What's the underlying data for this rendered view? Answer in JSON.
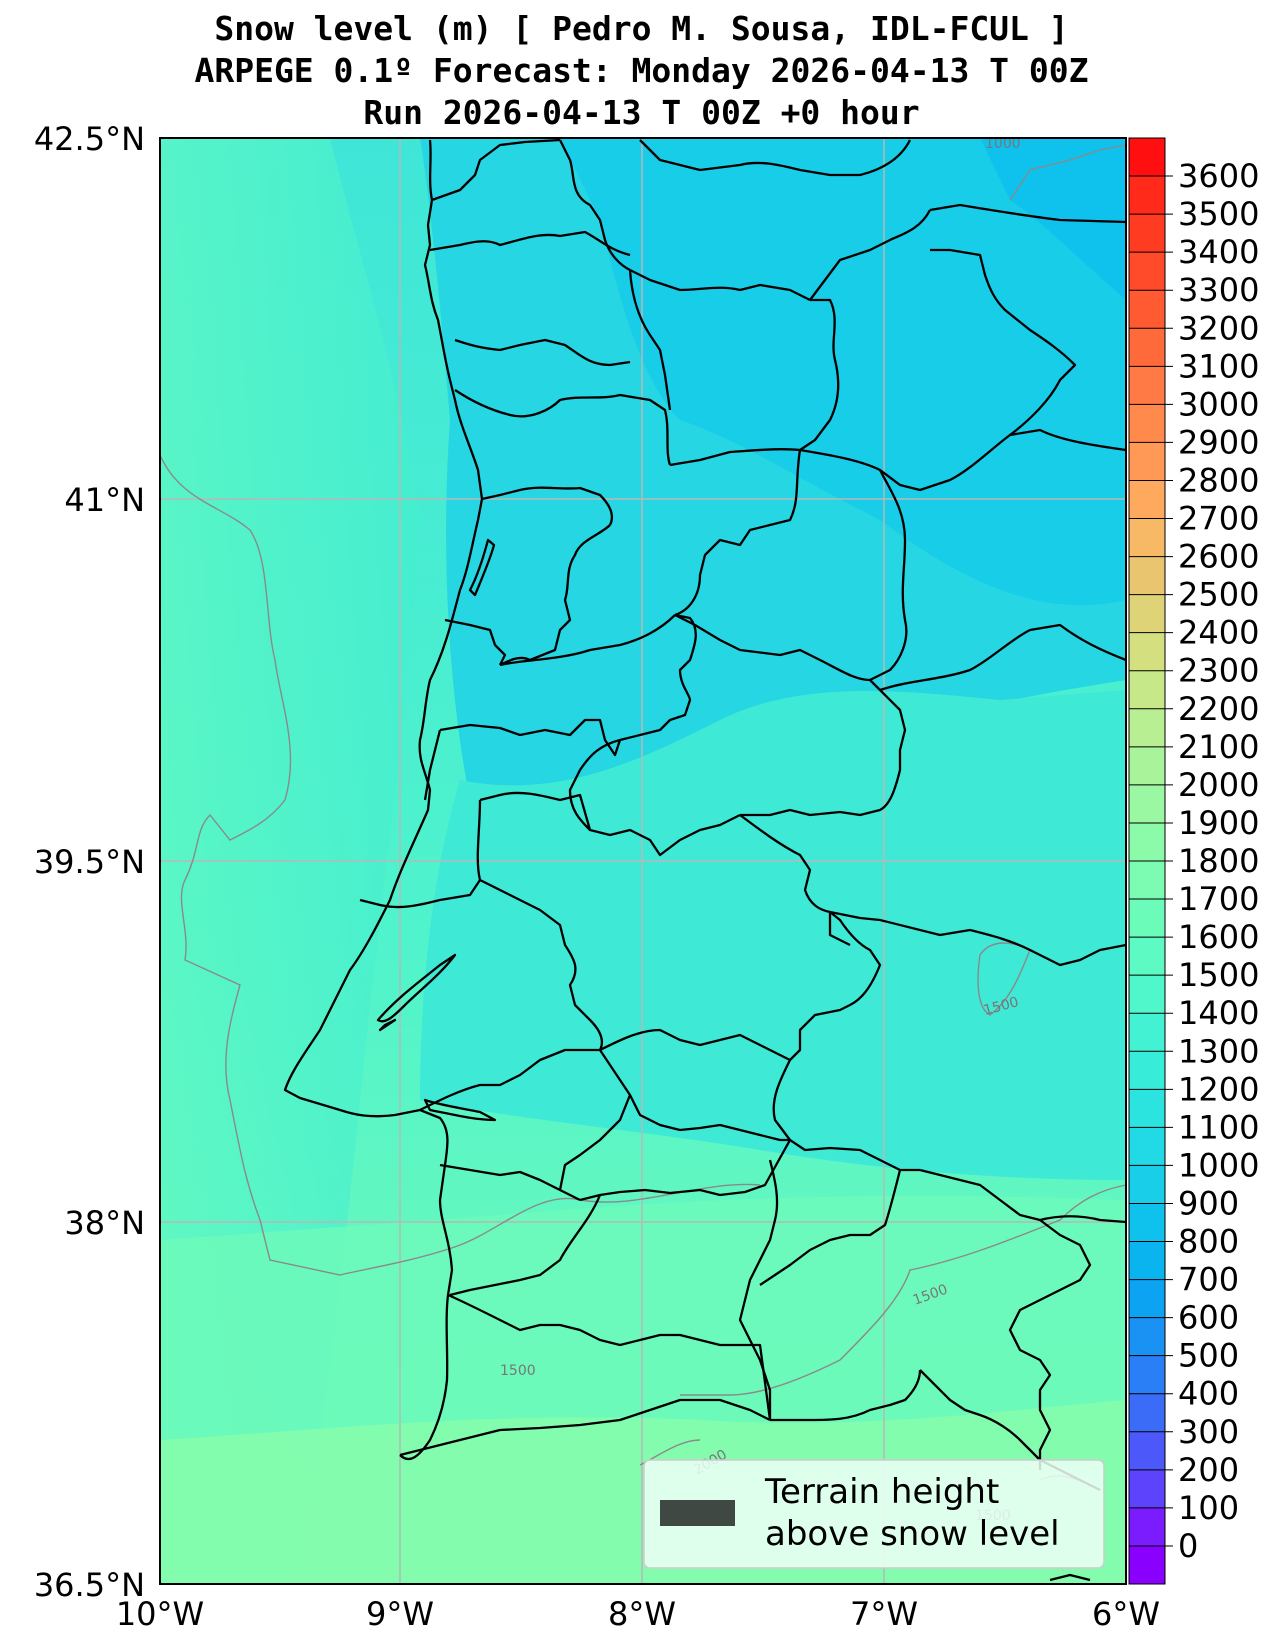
{
  "title": {
    "line1": "Snow level (m) [ Pedro M. Sousa, IDL-FCUL ]",
    "line2": "ARPEGE 0.1º Forecast: Monday 2026-04-13 T 00Z",
    "line3": "Run 2026-04-13 T 00Z +0 hour"
  },
  "axes": {
    "lat_labels": [
      "42.5°N",
      "41°N",
      "39.5°N",
      "38°N",
      "36.5°N"
    ],
    "lon_labels": [
      "10°W",
      "9°W",
      "8°W",
      "7°W",
      "6°W"
    ],
    "lat_values": [
      42.5,
      41.0,
      39.5,
      38.0,
      36.5
    ],
    "lon_values": [
      -10,
      -9,
      -8,
      -7,
      -6
    ]
  },
  "colorbar": {
    "labels": [
      "3600",
      "3500",
      "3400",
      "3300",
      "3200",
      "3100",
      "3000",
      "2900",
      "2800",
      "2700",
      "2600",
      "2500",
      "2400",
      "2300",
      "2200",
      "2100",
      "2000",
      "1900",
      "1800",
      "1700",
      "1600",
      "1500",
      "1400",
      "1300",
      "1200",
      "1100",
      "1000",
      "900",
      "800",
      "700",
      "600",
      "500",
      "400",
      "300",
      "200",
      "100",
      "0"
    ],
    "colors": [
      "#ff0f0f",
      "#ff2a1a",
      "#ff3b22",
      "#ff4b2a",
      "#ff5a32",
      "#ff6a3a",
      "#ff7a44",
      "#ff8a4c",
      "#ff9955",
      "#fea95e",
      "#f8b967",
      "#eac56f",
      "#dfd377",
      "#d4df80",
      "#c6e889",
      "#b8ef92",
      "#a9f49b",
      "#9af8a3",
      "#8bfbaa",
      "#7bfcb2",
      "#6cfcba",
      "#5dfac3",
      "#4ff7cb",
      "#42f2d2",
      "#37ecd9",
      "#2ce4df",
      "#22dae5",
      "#18cee9",
      "#0fc2ed",
      "#0ab4ef",
      "#0ca4f2",
      "#1a92f4",
      "#2a7ff6",
      "#3b6cf8",
      "#4c58fa",
      "#5e43fc",
      "#7a1cfe",
      "#8a00ff"
    ]
  },
  "contour_labels": [
    "1000",
    "1500",
    "1500",
    "1500",
    "2000",
    "1500"
  ],
  "legend": {
    "line1": "Terrain height",
    "line2": "above snow level",
    "swatch_color": "#404844"
  },
  "colors": {
    "ocean_coast": "#5df6c4",
    "inland_north": "#1fd0e6",
    "inland_center": "#3ce8d8",
    "south": "#6ef9b8",
    "far_south": "#8afca8"
  }
}
